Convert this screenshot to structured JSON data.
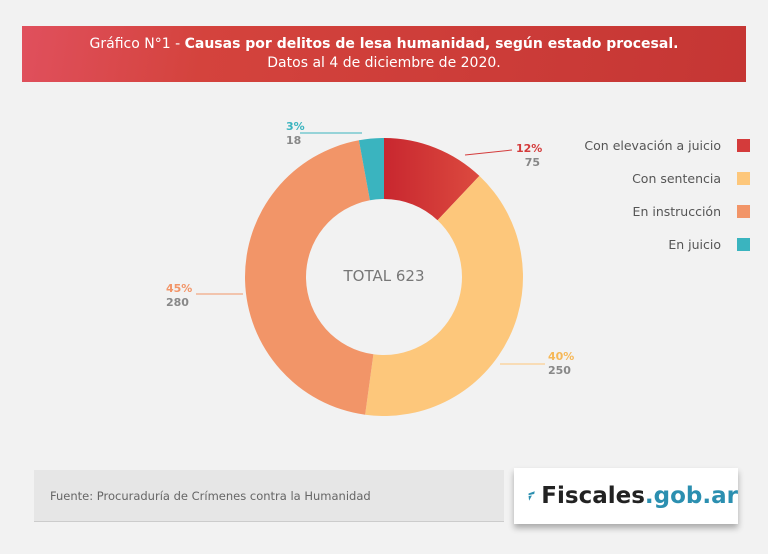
{
  "header": {
    "prefix": "Gráfico N°1 - ",
    "title": "Causas por delitos de lesa humanidad, según estado procesal.",
    "subtitle": "Datos al 4 de diciembre de 2020."
  },
  "chart_data": {
    "type": "pie",
    "donut": true,
    "center_label": "TOTAL 623",
    "categories": [
      "Con elevación a juicio",
      "Con sentencia",
      "En instrucción",
      "En juicio"
    ],
    "values": [
      75,
      250,
      280,
      18
    ],
    "percent_labels": [
      "12%",
      "40%",
      "45%",
      "3%"
    ],
    "colors": [
      "#d43b3b",
      "#fdc77b",
      "#f29568",
      "#3ab4bf"
    ],
    "legend_position": "right"
  },
  "footer": {
    "source": "Fuente: Procuraduría de Crímenes contra la Humanidad"
  },
  "logo": {
    "text1": "Fiscales",
    "text2": ".gob.ar"
  }
}
